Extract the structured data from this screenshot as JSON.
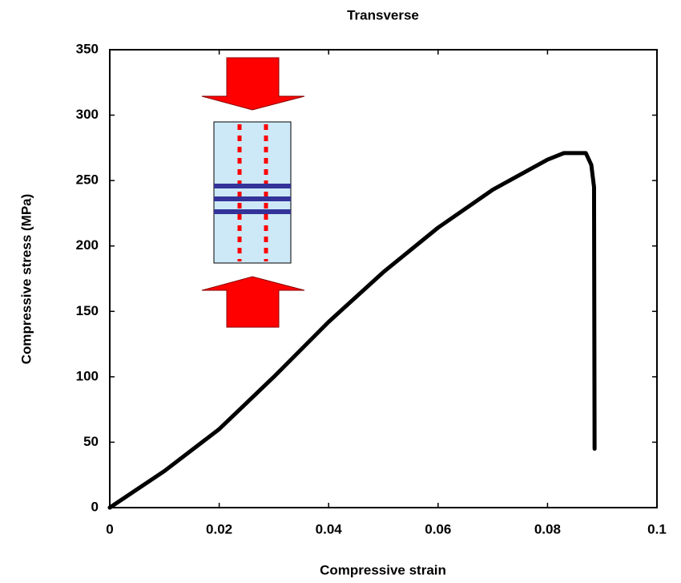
{
  "chart_data": {
    "type": "line",
    "title": "Transverse",
    "x_label": "Compressive strain",
    "y_label": "Compressive stress (MPa)",
    "x": [
      0,
      0.01,
      0.02,
      0.03,
      0.04,
      0.05,
      0.06,
      0.07,
      0.08,
      0.083,
      0.087,
      0.088,
      0.0885,
      0.0886
    ],
    "values": [
      0,
      28,
      60,
      100,
      142,
      180,
      214,
      243,
      266,
      271,
      271,
      262,
      245,
      45
    ],
    "color": "#000000",
    "xlim": [
      0,
      0.1
    ],
    "xticks": [
      0,
      0.02,
      0.04,
      0.06,
      0.08,
      0.1
    ],
    "ylim": [
      0,
      350
    ],
    "yticks": [
      0,
      50,
      100,
      150,
      200,
      250,
      300,
      350
    ],
    "grid": false
  }
}
